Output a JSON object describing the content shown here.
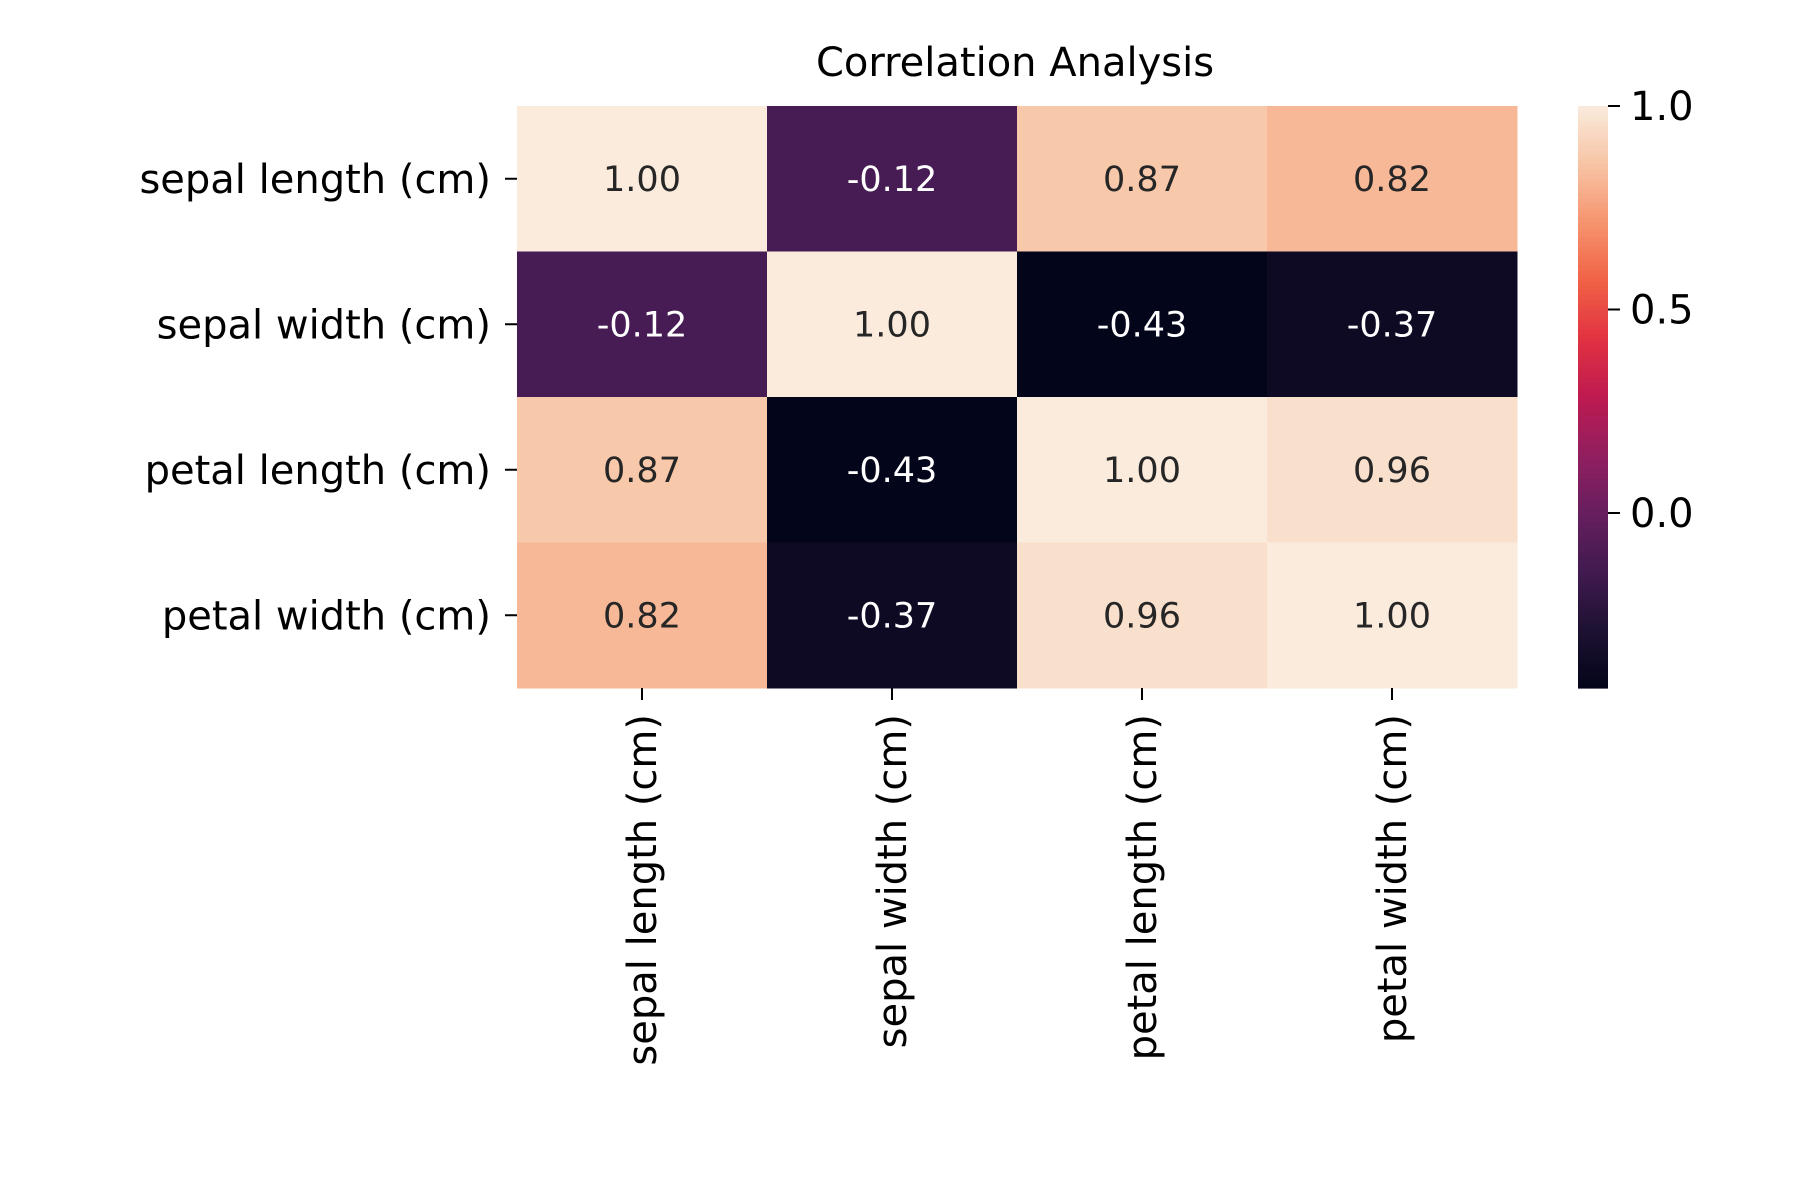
{
  "chart_data": {
    "type": "heatmap",
    "title": "Correlation Analysis",
    "row_labels": [
      "sepal length (cm)",
      "sepal width (cm)",
      "petal length (cm)",
      "petal width (cm)"
    ],
    "col_labels": [
      "sepal length (cm)",
      "sepal width (cm)",
      "petal length (cm)",
      "petal width (cm)"
    ],
    "values": [
      [
        1.0,
        -0.12,
        0.87,
        0.82
      ],
      [
        -0.12,
        1.0,
        -0.43,
        -0.37
      ],
      [
        0.87,
        -0.43,
        1.0,
        0.96
      ],
      [
        0.82,
        -0.37,
        0.96,
        1.0
      ]
    ],
    "annotations": [
      [
        "1.00",
        "-0.12",
        "0.87",
        "0.82"
      ],
      [
        "-0.12",
        "1.00",
        "-0.43",
        "-0.37"
      ],
      [
        "0.87",
        "-0.43",
        "1.00",
        "0.96"
      ],
      [
        "0.82",
        "-0.37",
        "0.96",
        "1.00"
      ]
    ],
    "colormap": "rocket",
    "vmin": -0.43,
    "vmax": 1.0,
    "colorbar_ticks": [
      {
        "value": 1.0,
        "label": "1.0"
      },
      {
        "value": 0.5,
        "label": "0.5"
      },
      {
        "value": 0.0,
        "label": "0.0"
      }
    ],
    "annotation_text_dark": "#262626",
    "annotation_text_light": "#ffffff",
    "grid": false,
    "legend": "colorbar-right"
  }
}
